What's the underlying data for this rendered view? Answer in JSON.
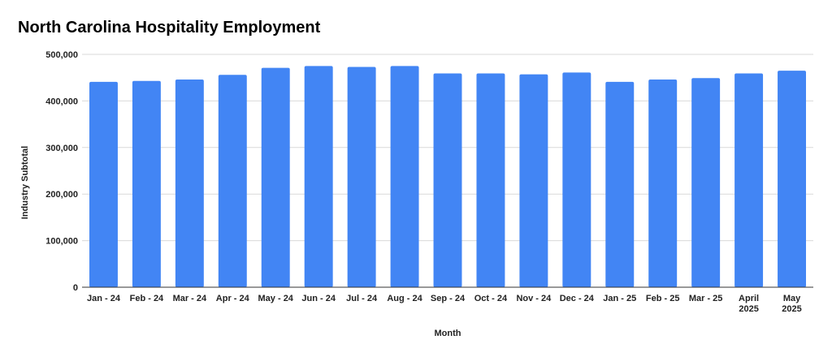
{
  "chart_data": {
    "type": "bar",
    "title": "North Carolina Hospitality Employment",
    "xlabel": "Month",
    "ylabel": "Industry Subtotal",
    "categories": [
      [
        "Jan - 24"
      ],
      [
        "Feb - 24"
      ],
      [
        "Mar - 24"
      ],
      [
        "Apr - 24"
      ],
      [
        "May - 24"
      ],
      [
        "Jun - 24"
      ],
      [
        "Jul - 24"
      ],
      [
        "Aug - 24"
      ],
      [
        "Sep - 24"
      ],
      [
        "Oct - 24"
      ],
      [
        "Nov - 24"
      ],
      [
        "Dec - 24"
      ],
      [
        "Jan - 25"
      ],
      [
        "Feb - 25"
      ],
      [
        "Mar - 25"
      ],
      [
        "April",
        "2025"
      ],
      [
        "May",
        "2025"
      ]
    ],
    "values": [
      441000,
      443000,
      446000,
      456000,
      471000,
      475000,
      473000,
      475000,
      459000,
      459000,
      457000,
      461000,
      441000,
      446000,
      449000,
      459000,
      465000
    ],
    "ylim": [
      0,
      500000
    ],
    "yticks": [
      0,
      100000,
      200000,
      300000,
      400000,
      500000
    ],
    "ytick_labels": [
      "0",
      "100,000",
      "200,000",
      "300,000",
      "400,000",
      "500,000"
    ],
    "bar_color": "#4285f4",
    "grid": true,
    "legend": "none"
  }
}
